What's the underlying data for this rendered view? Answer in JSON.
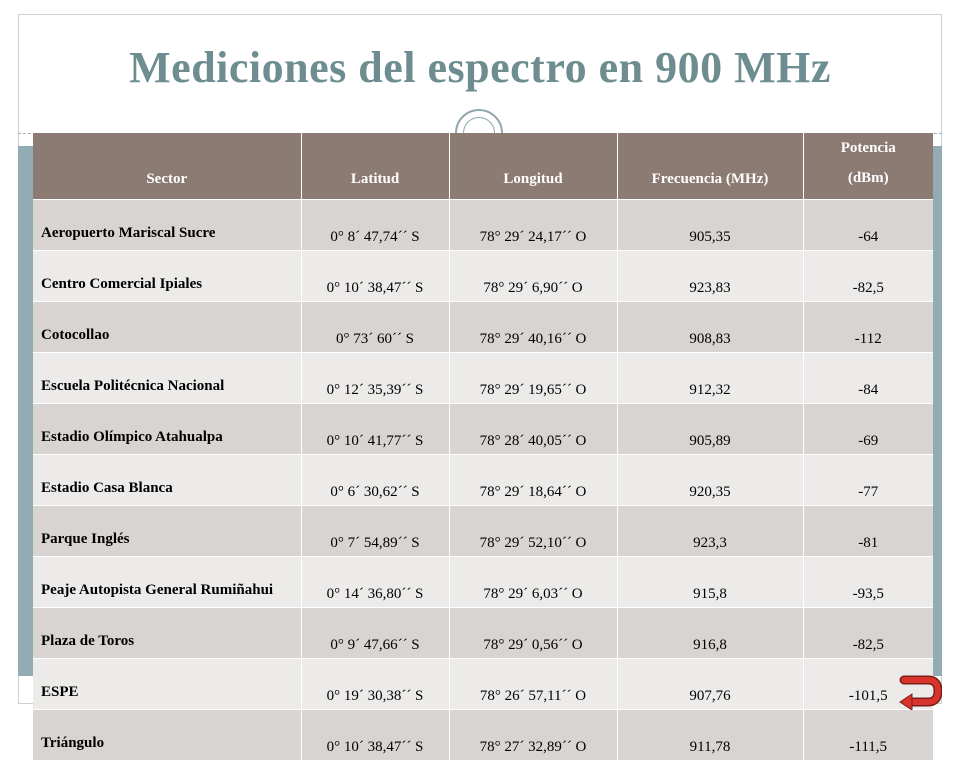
{
  "slide": {
    "title": "Mediciones del espectro en 900 MHz"
  },
  "table": {
    "headers": [
      "Sector",
      "Latitud",
      "Longitud",
      "Frecuencia (MHz)",
      "Potencia (dBm)"
    ],
    "rows": [
      [
        "Aeropuerto Mariscal Sucre",
        "0° 8´ 47,74´´ S",
        "78° 29´ 24,17´´ O",
        "905,35",
        "-64"
      ],
      [
        "Centro Comercial Ipiales",
        "0° 10´ 38,47´´ S",
        "78° 29´ 6,90´´ O",
        "923,83",
        "-82,5"
      ],
      [
        "Cotocollao",
        "0° 73´ 60´´ S",
        "78° 29´ 40,16´´ O",
        "908,83",
        "-112"
      ],
      [
        "Escuela Politécnica Nacional",
        "0° 12´ 35,39´´ S",
        "78° 29´ 19,65´´ O",
        "912,32",
        "-84"
      ],
      [
        "Estadio Olímpico Atahualpa",
        "0° 10´ 41,77´´ S",
        "78° 28´ 40,05´´ O",
        "905,89",
        "-69"
      ],
      [
        "Estadio Casa Blanca",
        "0° 6´ 30,62´´ S",
        "78° 29´ 18,64´´ O",
        "920,35",
        "-77"
      ],
      [
        "Parque Inglés",
        "0° 7´ 54,89´´ S",
        "78° 29´ 52,10´´ O",
        "923,3",
        "-81"
      ],
      [
        "Peaje Autopista General Rumiñahui",
        "0° 14´ 36,80´´ S",
        "78° 29´ 6,03´´ O",
        "915,8",
        "-93,5"
      ],
      [
        "Plaza de Toros",
        "0° 9´ 47,66´´ S",
        "78° 29´ 0,56´´ O",
        "916,8",
        "-82,5"
      ],
      [
        "ESPE",
        "0° 19´ 30,38´´ S",
        "78° 26´ 57,11´´ O",
        "907,76",
        "-101,5"
      ],
      [
        "Triángulo",
        "0° 10´ 38,47´´ S",
        "78° 27´ 32,89´´ O",
        "911,78",
        "-111,5"
      ]
    ]
  },
  "colors": {
    "title": "#6e8d91",
    "header_bg": "#8c7b72",
    "row_odd": "#d8d4d1",
    "row_even": "#ecebea",
    "band": "#93acb3",
    "return_icon": "#d9342b"
  },
  "icons": {
    "decorative_ring": "double-ring-icon",
    "return": "return-arrow-icon"
  }
}
